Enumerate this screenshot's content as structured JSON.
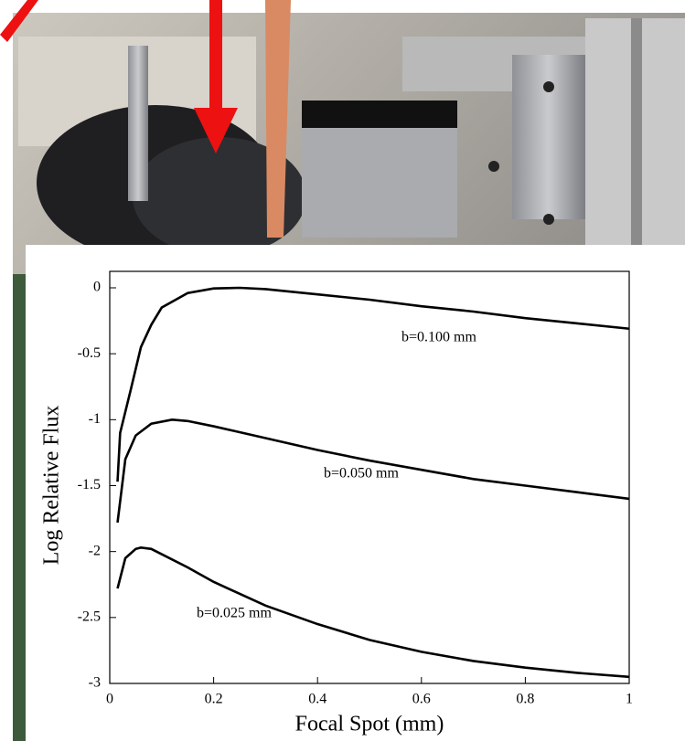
{
  "chart_data": {
    "type": "line",
    "x_label": "Focal Spot (mm)",
    "y_label": "Log Relative Flux",
    "xlim": [
      0,
      1
    ],
    "ylim": [
      -3,
      0
    ],
    "xticks": [
      0,
      0.2,
      0.4,
      0.6,
      0.8,
      1
    ],
    "yticks": [
      0,
      -0.5,
      -1,
      -1.5,
      -2,
      -2.5,
      -3
    ],
    "series": [
      {
        "name": "b=0.100 mm",
        "color": "#000000",
        "x": [
          0.015,
          0.02,
          0.04,
          0.06,
          0.08,
          0.1,
          0.15,
          0.2,
          0.25,
          0.3,
          0.4,
          0.5,
          0.6,
          0.7,
          0.8,
          0.9,
          1.0
        ],
        "values": [
          -1.47,
          -1.1,
          -0.78,
          -0.45,
          -0.28,
          -0.15,
          -0.04,
          -0.005,
          0,
          -0.01,
          -0.05,
          -0.09,
          -0.14,
          -0.18,
          -0.23,
          -0.27,
          -0.31
        ]
      },
      {
        "name": "b=0.050 mm",
        "color": "#000000",
        "x": [
          0.015,
          0.03,
          0.05,
          0.08,
          0.12,
          0.15,
          0.2,
          0.3,
          0.4,
          0.5,
          0.6,
          0.7,
          0.8,
          0.9,
          1.0
        ],
        "values": [
          -1.78,
          -1.3,
          -1.12,
          -1.03,
          -1.0,
          -1.01,
          -1.05,
          -1.14,
          -1.23,
          -1.31,
          -1.38,
          -1.45,
          -1.5,
          -1.55,
          -1.6
        ]
      },
      {
        "name": "b=0.025 mm",
        "color": "#000000",
        "x": [
          0.015,
          0.03,
          0.05,
          0.06,
          0.08,
          0.1,
          0.15,
          0.2,
          0.3,
          0.4,
          0.5,
          0.6,
          0.7,
          0.8,
          0.9,
          1.0
        ],
        "values": [
          -2.28,
          -2.05,
          -1.98,
          -1.97,
          -1.98,
          -2.02,
          -2.12,
          -2.23,
          -2.41,
          -2.55,
          -2.67,
          -2.76,
          -2.83,
          -2.88,
          -2.92,
          -2.95
        ]
      }
    ]
  }
}
